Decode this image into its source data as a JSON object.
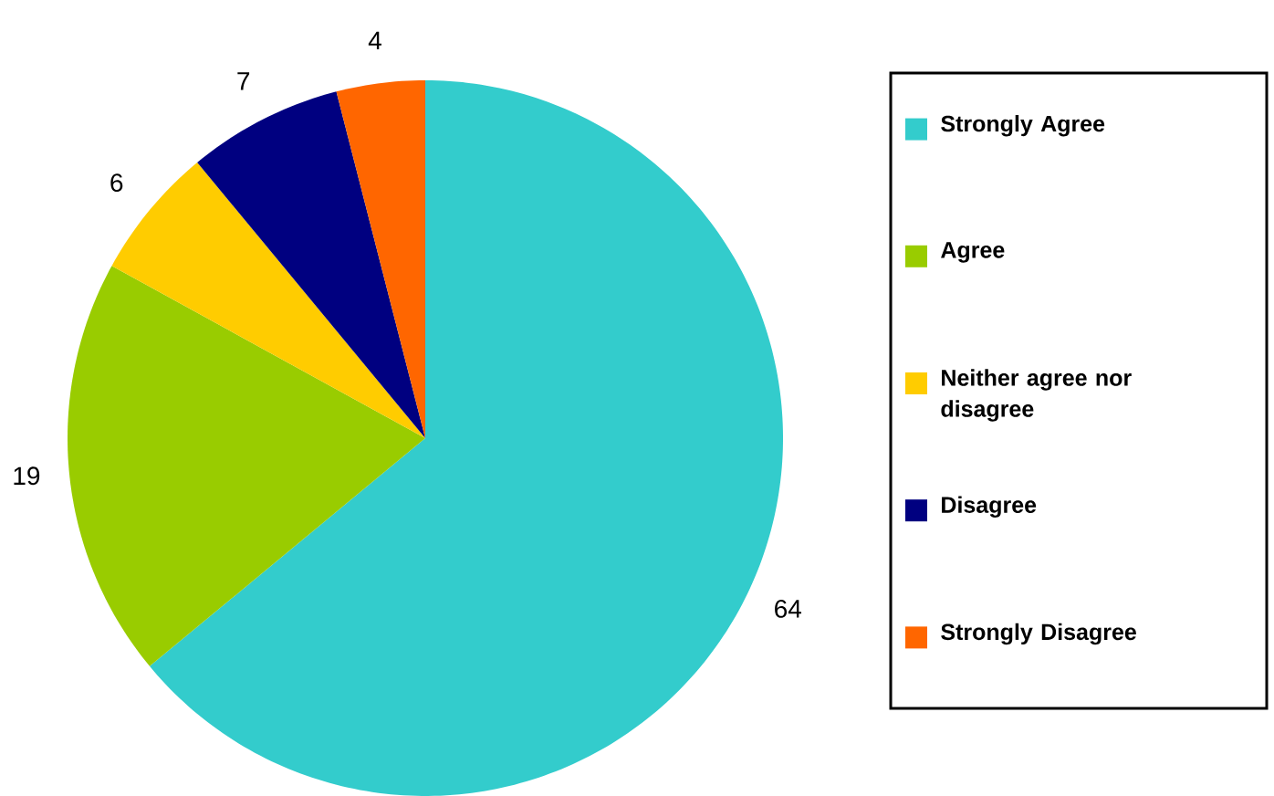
{
  "chart_data": {
    "type": "pie",
    "categories": [
      "Strongly Agree",
      "Agree",
      "Neither agree nor disagree",
      "Disagree",
      "Strongly Disagree"
    ],
    "values": [
      64,
      19,
      6,
      7,
      4
    ],
    "colors": [
      "#33cccc",
      "#99cc00",
      "#ffcc00",
      "#000080",
      "#ff6600"
    ],
    "legend": "right",
    "data_labels": true
  }
}
